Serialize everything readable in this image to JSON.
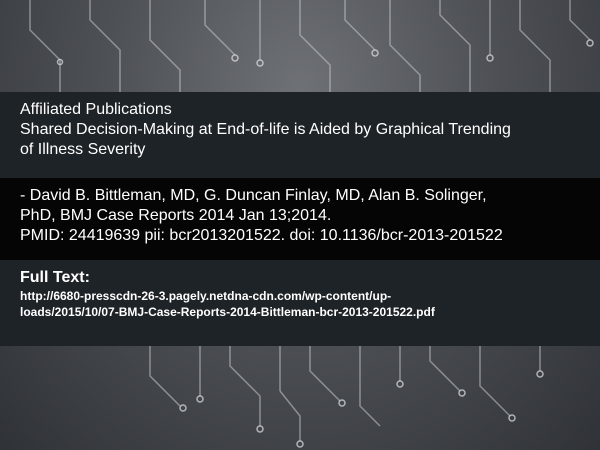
{
  "section_label": "Affiliated Publications",
  "title_lines": [
    "Shared Decision-Making at End-of-life is Aided by Graphical Trending",
    "of Illness Severity"
  ],
  "citation_lines": [
    "-  David B. Bittleman, MD, G. Duncan Finlay, MD, Alan B. Solinger,",
    "PhD, BMJ Case Reports 2014 Jan 13;2014.",
    "PMID: 24419639 pii: bcr2013201522. doi: 10.1136/bcr-2013-201522"
  ],
  "full_text": {
    "heading": "Full Text:",
    "url_lines": [
      "http://6680-presscdn-26-3.pagely.netdna-cdn.com/wp-content/up-",
      "loads/2015/10/07-BMJ-Case-Reports-2014-Bittleman-bcr-2013-201522.pdf"
    ]
  },
  "colors": {
    "band_dark": "#1e2328",
    "band_black": "#050505",
    "text": "#ffffff",
    "circuit": "#c9ccd0"
  }
}
